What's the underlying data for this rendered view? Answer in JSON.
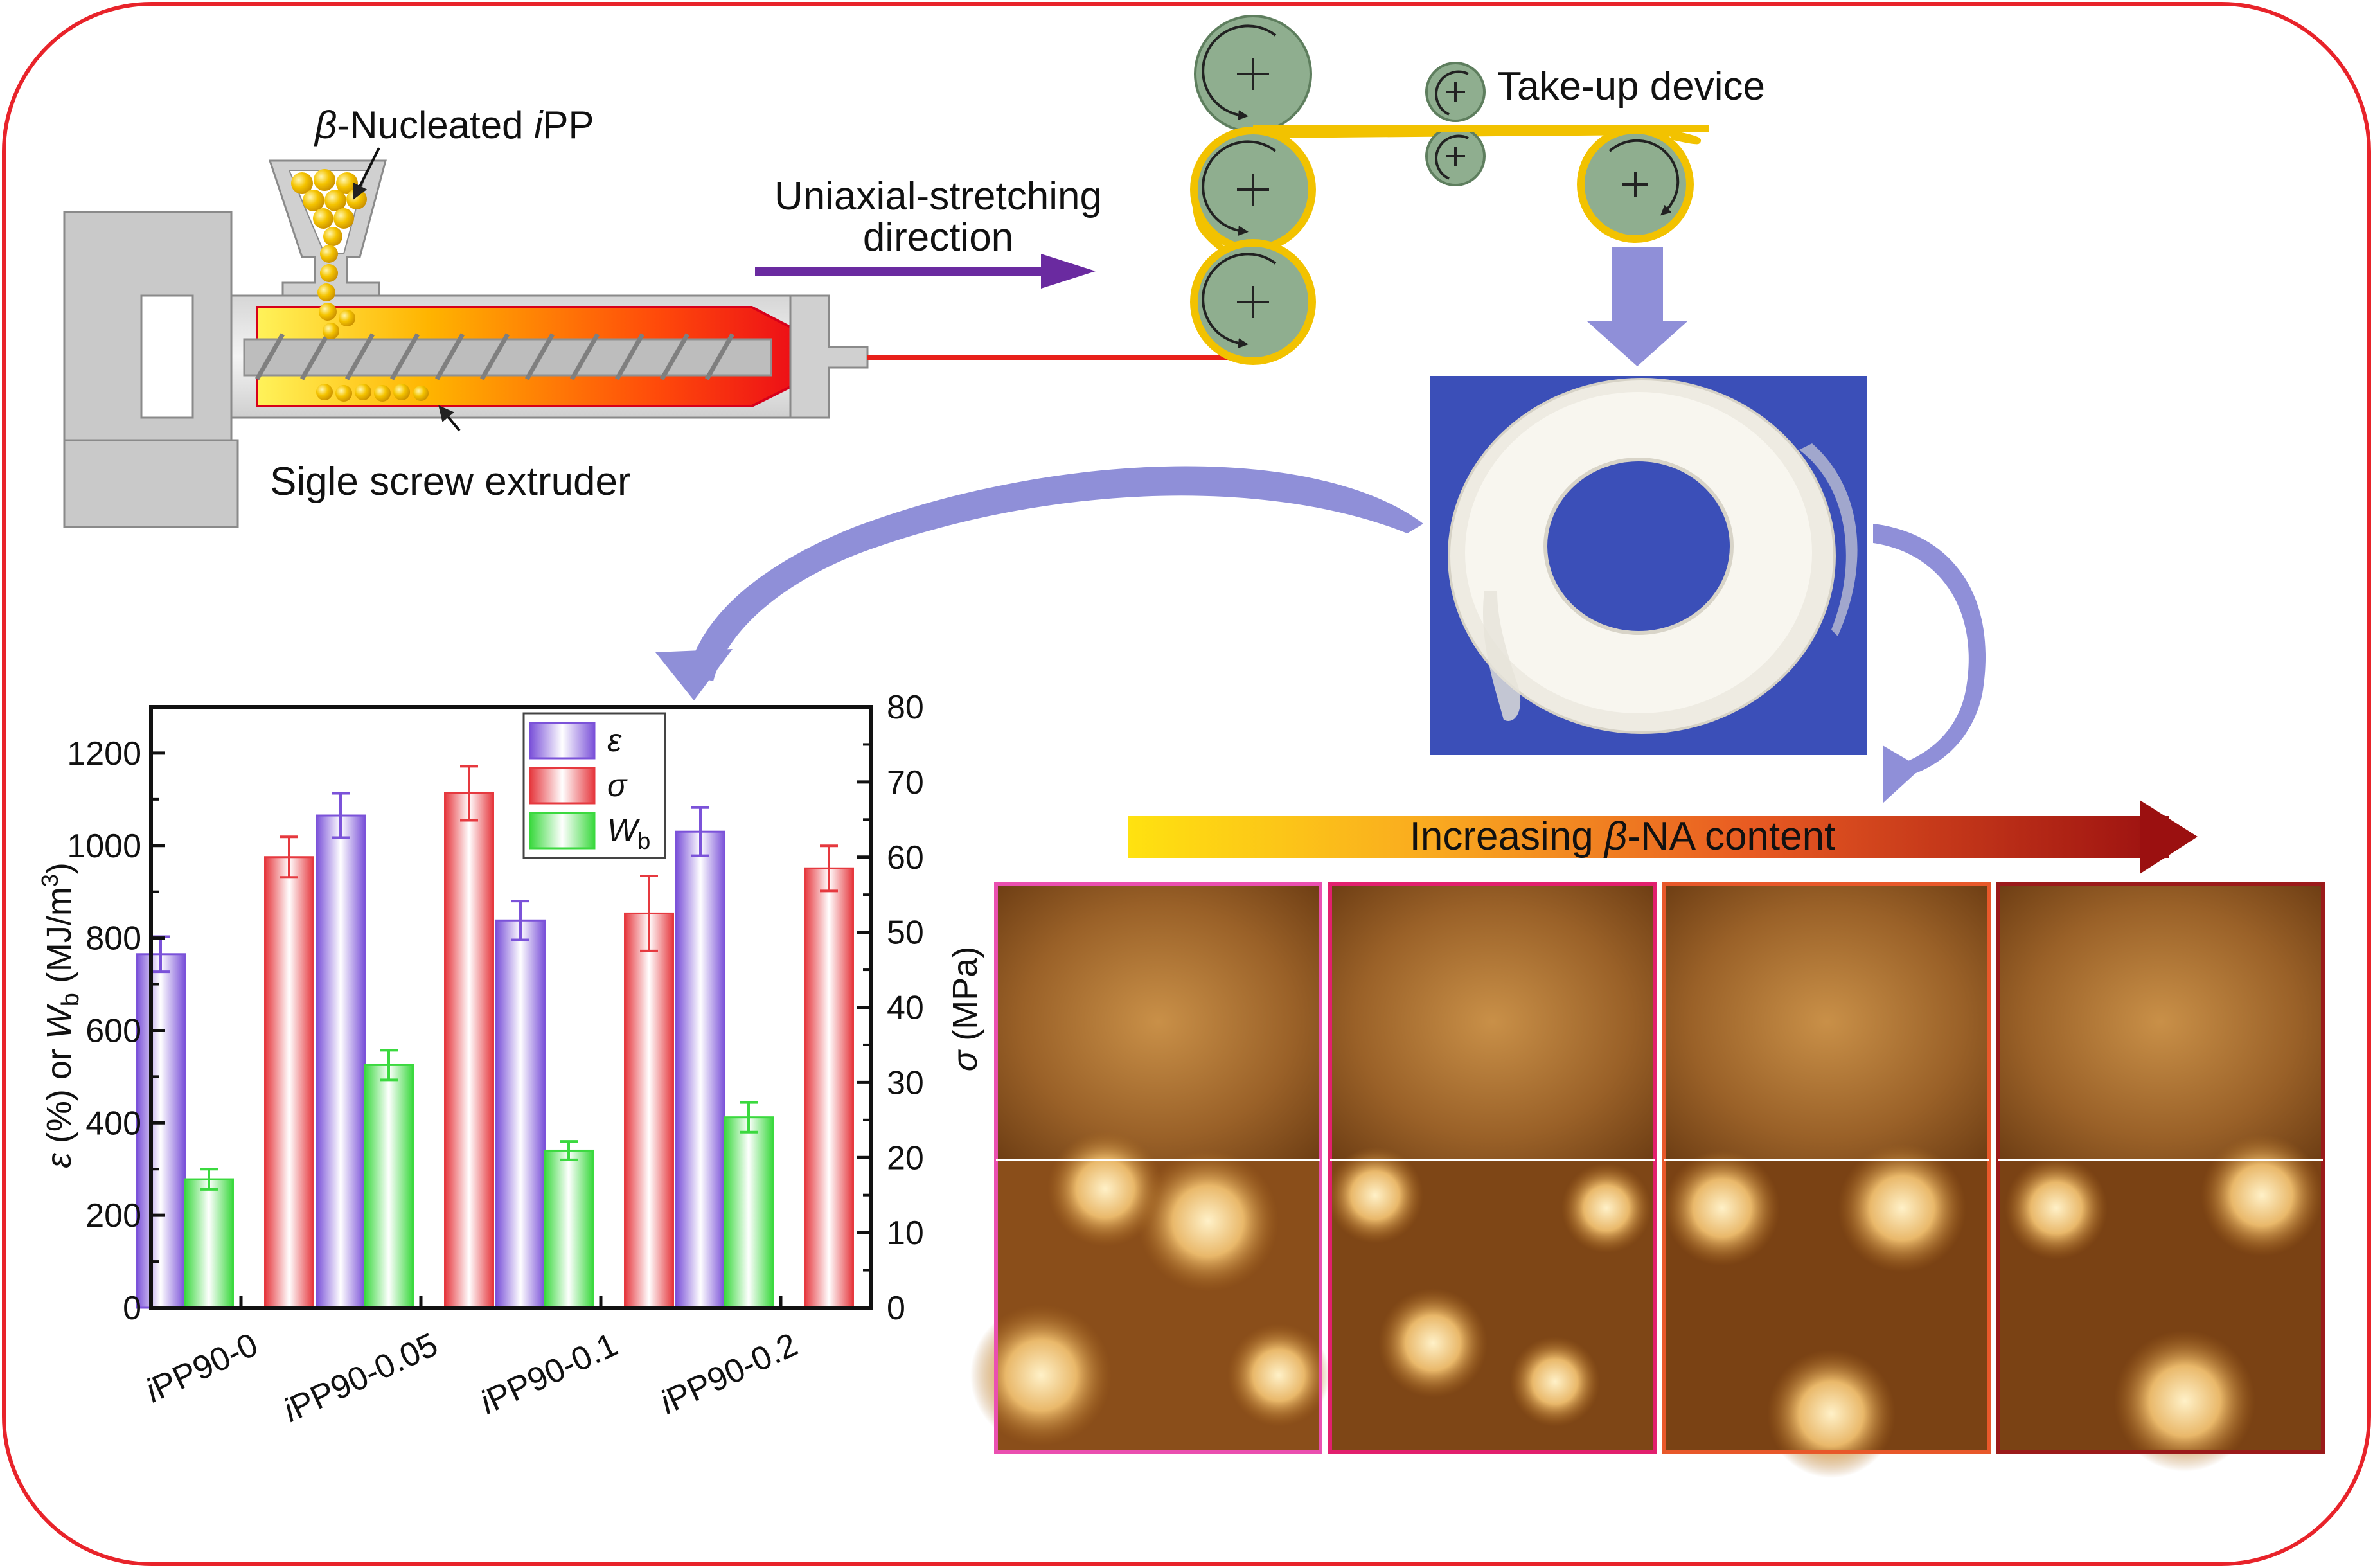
{
  "labels": {
    "hopper_beta": "β",
    "hopper_rest": "-Nucleated ",
    "hopper_i": "i",
    "hopper_pp": "PP",
    "stretch_line1": "Uniaxial-stretching",
    "stretch_line2": "direction",
    "takeup": "Take-up device",
    "extruder": "Sigle screw extruder",
    "gradient_pre": "Increasing ",
    "gradient_beta": "β",
    "gradient_post": "-NA content"
  },
  "colors": {
    "frame": "#e8232a",
    "epsilon": "#7b52d9",
    "sigma": "#e6393f",
    "wb": "#3bd93f",
    "stretch_arrow": "#6a2aa0",
    "swoosh": "#8f8fd8",
    "roller": "#8fae8f",
    "film": "#f2c200"
  },
  "chart_data": {
    "type": "bar",
    "categories": [
      "iPP90-0",
      "iPP90-0.05",
      "iPP90-0.1",
      "iPP90-0.2"
    ],
    "series": [
      {
        "name": "ε",
        "axis": "left",
        "values": [
          765,
          1065,
          838,
          1030
        ],
        "errors": [
          38,
          48,
          42,
          52
        ]
      },
      {
        "name": "σ",
        "axis": "right",
        "values": [
          60,
          68.5,
          52.5,
          58.5
        ],
        "errors": [
          2.7,
          3.6,
          5,
          3
        ]
      },
      {
        "name": "W",
        "sub": "b",
        "axis": "left",
        "values": [
          278,
          525,
          340,
          412
        ],
        "errors": [
          22,
          32,
          20,
          32
        ]
      }
    ],
    "ylim_left": [
      0,
      1300
    ],
    "yticks_left": [
      0,
      200,
      400,
      600,
      800,
      1000,
      1200
    ],
    "ylim_right": [
      0,
      80
    ],
    "yticks_right": [
      0,
      10,
      20,
      30,
      40,
      50,
      60,
      70,
      80
    ],
    "ylabel_left": {
      "eps": "ε",
      "mid": " (%) or ",
      "w": "W",
      "b": "b",
      "unit": " (MJ/m",
      "sup": "3",
      "end": ")"
    },
    "ylabel_right": {
      "sig": "σ",
      "unit": " (MPa)"
    },
    "legend_placement": "top-right"
  }
}
